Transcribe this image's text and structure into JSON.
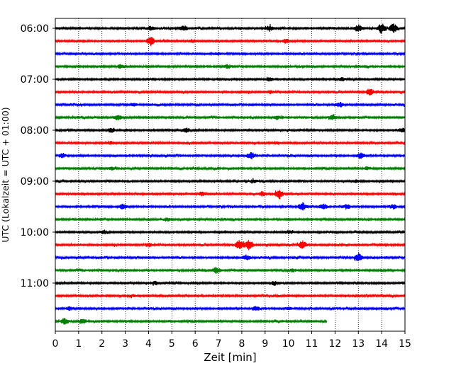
{
  "chart_data": {
    "type": "line",
    "xlabel": "Zeit  [min]",
    "ylabel": "UTC (Lokalzeit = UTC + 01:00)",
    "xlim": [
      0,
      15
    ],
    "x_ticks": [
      0,
      1,
      2,
      3,
      4,
      5,
      6,
      7,
      8,
      9,
      10,
      11,
      12,
      13,
      14,
      15
    ],
    "y_tick_labels": [
      "06:00",
      "07:00",
      "08:00",
      "09:00",
      "10:00",
      "11:00"
    ],
    "grid": "vertical dotted",
    "trace_interval_min": 15,
    "colors": [
      "#000000",
      "#ff0000",
      "#0000ff",
      "#008000"
    ],
    "series": [
      {
        "start": "06:00",
        "end_min": 15,
        "color": "#000000",
        "bursts": [
          [
            4.1,
            0.4
          ],
          [
            5.5,
            0.5
          ],
          [
            9.2,
            0.5
          ],
          [
            13.0,
            0.7
          ],
          [
            14.0,
            1.0
          ],
          [
            14.5,
            0.9
          ]
        ]
      },
      {
        "start": "06:15",
        "end_min": 15,
        "color": "#ff0000",
        "bursts": [
          [
            4.1,
            0.9
          ],
          [
            9.9,
            0.4
          ],
          [
            5.9,
            0.3
          ]
        ]
      },
      {
        "start": "06:30",
        "end_min": 15,
        "color": "#0000ff",
        "bursts": [
          [
            7.0,
            0.3
          ]
        ]
      },
      {
        "start": "06:45",
        "end_min": 15,
        "color": "#008000",
        "bursts": [
          [
            2.8,
            0.4
          ],
          [
            7.4,
            0.4
          ]
        ]
      },
      {
        "start": "07:00",
        "end_min": 15,
        "color": "#000000",
        "bursts": [
          [
            9.2,
            0.4
          ],
          [
            12.3,
            0.4
          ]
        ]
      },
      {
        "start": "07:15",
        "end_min": 15,
        "color": "#ff0000",
        "bursts": [
          [
            13.5,
            0.7
          ],
          [
            9.2,
            0.3
          ]
        ]
      },
      {
        "start": "07:30",
        "end_min": 15,
        "color": "#0000ff",
        "bursts": [
          [
            12.2,
            0.5
          ],
          [
            3.4,
            0.3
          ]
        ]
      },
      {
        "start": "07:45",
        "end_min": 15,
        "color": "#008000",
        "bursts": [
          [
            2.7,
            0.6
          ],
          [
            11.9,
            0.5
          ],
          [
            9.5,
            0.4
          ]
        ]
      },
      {
        "start": "08:00",
        "end_min": 15,
        "color": "#000000",
        "bursts": [
          [
            2.4,
            0.5
          ],
          [
            5.6,
            0.5
          ],
          [
            14.9,
            0.5
          ]
        ]
      },
      {
        "start": "08:15",
        "end_min": 15,
        "color": "#ff0000",
        "bursts": [
          [
            2.4,
            0.3
          ],
          [
            9.5,
            0.3
          ]
        ]
      },
      {
        "start": "08:30",
        "end_min": 15,
        "color": "#0000ff",
        "bursts": [
          [
            8.4,
            0.7
          ],
          [
            13.1,
            0.6
          ],
          [
            0.3,
            0.4
          ]
        ]
      },
      {
        "start": "08:45",
        "end_min": 15,
        "color": "#008000",
        "bursts": [
          [
            2.4,
            0.3
          ],
          [
            13.4,
            0.3
          ]
        ]
      },
      {
        "start": "09:00",
        "end_min": 15,
        "color": "#000000",
        "bursts": [
          [
            8.5,
            0.3
          ],
          [
            12.9,
            0.3
          ]
        ]
      },
      {
        "start": "09:15",
        "end_min": 15,
        "color": "#ff0000",
        "bursts": [
          [
            9.6,
            0.9
          ],
          [
            6.3,
            0.4
          ],
          [
            8.9,
            0.5
          ]
        ]
      },
      {
        "start": "09:30",
        "end_min": 15,
        "color": "#0000ff",
        "bursts": [
          [
            2.9,
            0.5
          ],
          [
            10.6,
            0.8
          ],
          [
            11.5,
            0.5
          ],
          [
            12.5,
            0.4
          ],
          [
            14.5,
            0.4
          ]
        ]
      },
      {
        "start": "09:45",
        "end_min": 15,
        "color": "#008000",
        "bursts": [
          [
            4.8,
            0.3
          ]
        ]
      },
      {
        "start": "10:00",
        "end_min": 15,
        "color": "#000000",
        "bursts": [
          [
            2.1,
            0.4
          ],
          [
            10.0,
            0.3
          ]
        ]
      },
      {
        "start": "10:15",
        "end_min": 15,
        "color": "#ff0000",
        "bursts": [
          [
            7.9,
            1.0
          ],
          [
            8.3,
            1.0
          ],
          [
            10.6,
            0.8
          ],
          [
            4.0,
            0.4
          ]
        ]
      },
      {
        "start": "10:30",
        "end_min": 15,
        "color": "#0000ff",
        "bursts": [
          [
            8.2,
            0.5
          ],
          [
            13.0,
            0.8
          ]
        ]
      },
      {
        "start": "10:45",
        "end_min": 15,
        "color": "#008000",
        "bursts": [
          [
            6.9,
            0.6
          ],
          [
            10.2,
            0.3
          ]
        ]
      },
      {
        "start": "11:00",
        "end_min": 15,
        "color": "#000000",
        "bursts": [
          [
            9.4,
            0.4
          ],
          [
            4.3,
            0.3
          ]
        ]
      },
      {
        "start": "11:15",
        "end_min": 15,
        "color": "#ff0000",
        "bursts": [
          [
            3.3,
            0.2
          ]
        ]
      },
      {
        "start": "11:30",
        "end_min": 15,
        "color": "#0000ff",
        "bursts": [
          [
            8.6,
            0.5
          ],
          [
            0.6,
            0.3
          ],
          [
            10.0,
            0.3
          ]
        ]
      },
      {
        "start": "11:45",
        "end_min": 11.65,
        "color": "#008000",
        "bursts": [
          [
            0.4,
            0.6
          ],
          [
            1.2,
            0.4
          ]
        ]
      }
    ]
  }
}
